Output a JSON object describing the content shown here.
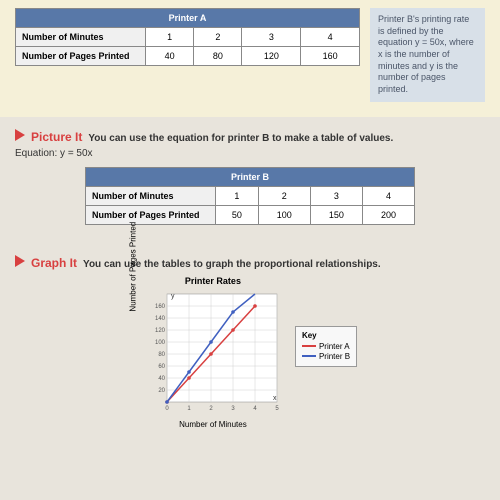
{
  "top": {
    "tableA": {
      "header": "Printer A",
      "row1": "Number of Minutes",
      "row2": "Number of Pages Printed",
      "cols": [
        "1",
        "2",
        "3",
        "4"
      ],
      "vals": [
        "40",
        "80",
        "120",
        "160"
      ]
    },
    "info": "Printer B's printing rate is defined by the equation y = 50x, where x is the number of minutes and y is the number of pages printed."
  },
  "picture": {
    "label": "Picture It",
    "desc": "You can use the equation for printer B to make a table of values.",
    "equation": "Equation: y = 50x",
    "tableB": {
      "header": "Printer B",
      "row1": "Number of Minutes",
      "row2": "Number of Pages Printed",
      "cols": [
        "1",
        "2",
        "3",
        "4"
      ],
      "vals": [
        "50",
        "100",
        "150",
        "200"
      ]
    }
  },
  "graph": {
    "label": "Graph It",
    "desc": "You can use the tables to graph the proportional relationships.",
    "title": "Printer Rates",
    "ylabel": "Number of Pages Printed",
    "xlabel": "Number of Minutes",
    "chart": {
      "type": "line",
      "xlim": [
        0,
        5
      ],
      "ylim": [
        0,
        180
      ],
      "xticks": [
        "0",
        "1",
        "2",
        "3",
        "4",
        "5"
      ],
      "yticks": [
        "20",
        "40",
        "60",
        "80",
        "100",
        "120",
        "140",
        "160"
      ],
      "grid_color": "#d0d0d0",
      "background": "#ffffff",
      "seriesA": {
        "color": "#d84040",
        "points": [
          [
            0,
            0
          ],
          [
            1,
            40
          ],
          [
            2,
            80
          ],
          [
            3,
            120
          ],
          [
            4,
            160
          ]
        ]
      },
      "seriesB": {
        "color": "#4060c0",
        "points": [
          [
            0,
            0
          ],
          [
            1,
            50
          ],
          [
            2,
            100
          ],
          [
            3,
            150
          ],
          [
            4,
            200
          ]
        ]
      }
    },
    "key": {
      "title": "Key",
      "a": "Printer A",
      "b": "Printer B"
    }
  }
}
